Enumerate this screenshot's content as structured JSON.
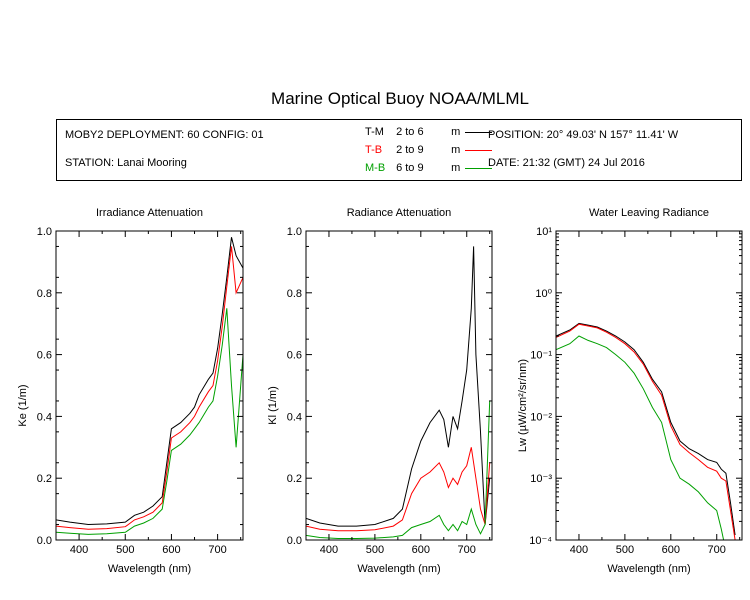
{
  "title": "Marine Optical Buoy NOAA/MLML",
  "info": {
    "deployment": "MOBY2 DEPLOYMENT: 60 CONFIG: 01",
    "station": "STATION: Lanai Mooring",
    "position": "POSITION: 20° 49.03' N   157° 11.41' W",
    "date": "DATE: 21:32 (GMT) 24 Jul 2016"
  },
  "legend": [
    {
      "code": "T-M",
      "range": "2 to 6",
      "unit": "m",
      "color": "#000000"
    },
    {
      "code": "T-B",
      "range": "2 to 9",
      "unit": "m",
      "color": "#ff0000"
    },
    {
      "code": "M-B",
      "range": "6 to 9",
      "unit": "m",
      "color": "#00a000"
    }
  ],
  "chart_data": [
    {
      "type": "line",
      "title": "Irradiance Attenuation",
      "xlabel": "Wavelength (nm)",
      "ylabel": "Ke  (1/m)",
      "xlim": [
        350,
        755
      ],
      "ylim": [
        0,
        1.0
      ],
      "xticks": [
        "400",
        "500",
        "600",
        "700"
      ],
      "yticks": [
        "0.0",
        "0.2",
        "0.4",
        "0.6",
        "0.8",
        "1.0"
      ],
      "yscale": "linear",
      "series": [
        {
          "name": "T-M",
          "color": "#000000",
          "x": [
            350,
            380,
            420,
            460,
            500,
            520,
            540,
            560,
            580,
            590,
            600,
            620,
            640,
            650,
            660,
            680,
            690,
            700,
            710,
            720,
            730,
            740,
            755
          ],
          "y": [
            0.065,
            0.058,
            0.05,
            0.052,
            0.058,
            0.08,
            0.09,
            0.11,
            0.14,
            0.25,
            0.36,
            0.38,
            0.41,
            0.43,
            0.47,
            0.52,
            0.54,
            0.62,
            0.73,
            0.85,
            0.98,
            0.92,
            0.88
          ]
        },
        {
          "name": "T-B",
          "color": "#ff0000",
          "x": [
            350,
            380,
            420,
            460,
            500,
            520,
            540,
            560,
            580,
            590,
            600,
            620,
            640,
            650,
            660,
            680,
            690,
            700,
            710,
            720,
            730,
            740,
            755
          ],
          "y": [
            0.045,
            0.04,
            0.035,
            0.037,
            0.043,
            0.065,
            0.075,
            0.09,
            0.12,
            0.22,
            0.33,
            0.35,
            0.38,
            0.4,
            0.43,
            0.48,
            0.5,
            0.58,
            0.69,
            0.82,
            0.95,
            0.8,
            0.85
          ]
        },
        {
          "name": "M-B",
          "color": "#00a000",
          "x": [
            350,
            380,
            420,
            460,
            500,
            520,
            540,
            560,
            580,
            590,
            600,
            620,
            640,
            650,
            660,
            680,
            690,
            700,
            710,
            720,
            730,
            740,
            755
          ],
          "y": [
            0.025,
            0.022,
            0.018,
            0.02,
            0.025,
            0.045,
            0.055,
            0.07,
            0.1,
            0.19,
            0.29,
            0.31,
            0.34,
            0.36,
            0.38,
            0.43,
            0.45,
            0.53,
            0.63,
            0.75,
            0.5,
            0.3,
            0.6
          ]
        }
      ]
    },
    {
      "type": "line",
      "title": "Radiance Attenuation",
      "xlabel": "Wavelength (nm)",
      "ylabel": "Kl  (1/m)",
      "xlim": [
        350,
        755
      ],
      "ylim": [
        0,
        1.0
      ],
      "xticks": [
        "400",
        "500",
        "600",
        "700"
      ],
      "yticks": [
        "0.0",
        "0.2",
        "0.4",
        "0.6",
        "0.8",
        "1.0"
      ],
      "yscale": "linear",
      "series": [
        {
          "name": "T-M",
          "color": "#000000",
          "x": [
            350,
            380,
            420,
            460,
            500,
            540,
            560,
            580,
            600,
            620,
            640,
            650,
            660,
            670,
            680,
            690,
            700,
            710,
            715,
            720,
            730,
            740,
            750
          ],
          "y": [
            0.07,
            0.055,
            0.045,
            0.045,
            0.05,
            0.07,
            0.1,
            0.23,
            0.32,
            0.38,
            0.42,
            0.39,
            0.3,
            0.4,
            0.36,
            0.45,
            0.55,
            0.75,
            0.95,
            0.6,
            0.35,
            0.05,
            0.2
          ]
        },
        {
          "name": "T-B",
          "color": "#ff0000",
          "x": [
            350,
            380,
            420,
            460,
            500,
            540,
            560,
            580,
            600,
            620,
            640,
            650,
            660,
            670,
            680,
            690,
            700,
            710,
            720,
            730,
            740,
            750
          ],
          "y": [
            0.045,
            0.035,
            0.03,
            0.03,
            0.033,
            0.045,
            0.065,
            0.15,
            0.2,
            0.22,
            0.25,
            0.22,
            0.17,
            0.2,
            0.18,
            0.22,
            0.24,
            0.3,
            0.2,
            0.1,
            0.05,
            0.25
          ]
        },
        {
          "name": "M-B",
          "color": "#00a000",
          "x": [
            350,
            380,
            420,
            460,
            500,
            540,
            560,
            580,
            600,
            620,
            640,
            650,
            660,
            670,
            680,
            690,
            700,
            710,
            720,
            730,
            740,
            750
          ],
          "y": [
            0.015,
            0.008,
            0.005,
            0.005,
            0.006,
            0.01,
            0.015,
            0.04,
            0.05,
            0.06,
            0.08,
            0.05,
            0.03,
            0.05,
            0.03,
            0.06,
            0.05,
            0.1,
            0.05,
            0.02,
            0.05,
            0.45
          ]
        }
      ]
    },
    {
      "type": "line",
      "title": "Water Leaving Radiance",
      "xlabel": "Wavelength (nm)",
      "ylabel": "Lw  (µW/cm²/sr/nm)",
      "xlim": [
        350,
        755
      ],
      "ylim": [
        0.0001,
        10
      ],
      "xticks": [
        "400",
        "500",
        "600",
        "700"
      ],
      "yticks": [
        "10⁻⁴",
        "10⁻³",
        "10⁻²",
        "10⁻¹",
        "10⁰",
        "10¹"
      ],
      "yscale": "log",
      "series": [
        {
          "name": "T-M",
          "color": "#000000",
          "x": [
            350,
            380,
            400,
            420,
            440,
            460,
            480,
            500,
            520,
            540,
            560,
            580,
            600,
            620,
            640,
            660,
            680,
            700,
            710,
            720,
            730,
            740
          ],
          "y": [
            0.2,
            0.25,
            0.32,
            0.3,
            0.28,
            0.24,
            0.2,
            0.16,
            0.12,
            0.075,
            0.04,
            0.025,
            0.008,
            0.004,
            0.003,
            0.0025,
            0.002,
            0.0018,
            0.0014,
            0.0012,
            0.0004,
            0.00012
          ]
        },
        {
          "name": "T-B",
          "color": "#ff0000",
          "x": [
            350,
            380,
            400,
            420,
            440,
            460,
            480,
            500,
            520,
            540,
            560,
            580,
            600,
            620,
            640,
            660,
            680,
            700,
            710,
            720,
            730,
            740
          ],
          "y": [
            0.19,
            0.24,
            0.31,
            0.29,
            0.27,
            0.23,
            0.19,
            0.15,
            0.11,
            0.07,
            0.037,
            0.022,
            0.007,
            0.0035,
            0.0026,
            0.002,
            0.0015,
            0.0013,
            0.001,
            0.0009,
            0.0003,
            0.0001
          ]
        },
        {
          "name": "M-B",
          "color": "#00a000",
          "x": [
            350,
            380,
            400,
            420,
            440,
            460,
            480,
            500,
            520,
            540,
            560,
            580,
            600,
            620,
            640,
            660,
            680,
            700,
            710,
            715
          ],
          "y": [
            0.12,
            0.15,
            0.2,
            0.17,
            0.15,
            0.13,
            0.1,
            0.075,
            0.05,
            0.028,
            0.014,
            0.008,
            0.002,
            0.001,
            0.0008,
            0.0006,
            0.0004,
            0.0003,
            0.00015,
            0.0001
          ]
        }
      ]
    }
  ]
}
